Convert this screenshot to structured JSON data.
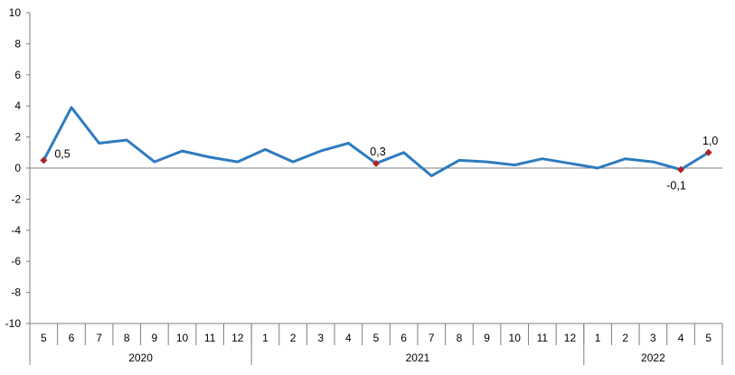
{
  "chart_data": {
    "type": "line",
    "title": "",
    "xlabel": "",
    "ylabel": "",
    "ylim": [
      -10,
      10
    ],
    "yticks": [
      "10",
      "8",
      "6",
      "4",
      "2",
      "0",
      "-2",
      "-4",
      "-6",
      "-8",
      "-10"
    ],
    "categories": [
      "5",
      "6",
      "7",
      "8",
      "9",
      "10",
      "11",
      "12",
      "1",
      "2",
      "3",
      "4",
      "5",
      "6",
      "7",
      "8",
      "9",
      "10",
      "11",
      "12",
      "1",
      "2",
      "3",
      "4",
      "5"
    ],
    "years": [
      {
        "label": "2020",
        "start": 0,
        "end": 7
      },
      {
        "label": "2021",
        "start": 8,
        "end": 19
      },
      {
        "label": "2022",
        "start": 20,
        "end": 24
      }
    ],
    "series": [
      {
        "values": [
          0.5,
          3.9,
          1.6,
          1.8,
          0.4,
          1.1,
          0.7,
          0.4,
          1.2,
          0.4,
          1.1,
          1.6,
          0.3,
          1.0,
          -0.5,
          0.5,
          0.4,
          0.2,
          0.6,
          0.3,
          0.0,
          0.6,
          0.4,
          -0.1,
          1.0
        ],
        "color": "#2e7bbf"
      }
    ],
    "highlight_points": [
      {
        "index": 0,
        "label": "0,5",
        "placement": "right"
      },
      {
        "index": 12,
        "label": "0,3",
        "placement": "above"
      },
      {
        "index": 23,
        "label": "-0,1",
        "placement": "below-left"
      },
      {
        "index": 24,
        "label": "1,0",
        "placement": "above"
      }
    ],
    "marker_color": "#b22222",
    "axis_color": "#7f7f7f",
    "grid": false,
    "legend": "none"
  }
}
